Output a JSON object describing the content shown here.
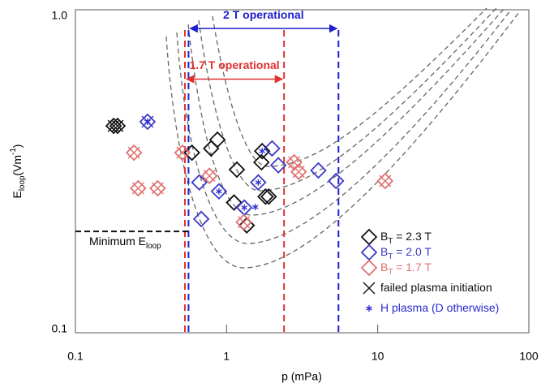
{
  "chart_data": {
    "type": "scatter",
    "x_label": "p (mPa)",
    "y_label": [
      {
        "t": "E"
      },
      {
        "t": "loop",
        "sub": true
      },
      {
        "t": "(Vm"
      },
      {
        "t": "-1",
        "sup": true
      },
      {
        "t": ")"
      }
    ],
    "xscale": "log",
    "yscale": "log",
    "xlim": [
      0.1,
      100
    ],
    "ylim": [
      0.1,
      1
    ],
    "xticks": [
      0.1,
      1,
      10,
      100
    ],
    "yticks": [
      0.1,
      {
        "value": 1,
        "label": "1.0"
      }
    ],
    "legend": "lower right",
    "series": [
      {
        "name": [
          {
            "t": "B"
          },
          {
            "t": "T",
            "sub": true
          },
          {
            "t": " = 2.3 T"
          }
        ],
        "marker": "diamond",
        "color": "#111111",
        "x": [
          0.179,
          0.19,
          0.59,
          0.79,
          0.87,
          1.17,
          1.12,
          1.36,
          1.72,
          1.81,
          1.9,
          1.7
        ],
        "values": [
          0.437,
          0.437,
          0.361,
          0.372,
          0.396,
          0.32,
          0.253,
          0.215,
          0.365,
          0.264,
          0.264,
          0.337
        ]
      },
      {
        "name": [
          {
            "t": "B"
          },
          {
            "t": "T",
            "sub": true
          },
          {
            "t": " = 2.0 T"
          }
        ],
        "marker": "diamond",
        "color": "#3a3ac8",
        "x": [
          0.3,
          0.68,
          0.66,
          0.89,
          1.31,
          1.62,
          2.0,
          2.2,
          4.05,
          5.3
        ],
        "values": [
          0.45,
          0.225,
          0.292,
          0.274,
          0.244,
          0.292,
          0.372,
          0.33,
          0.318,
          0.295
        ]
      },
      {
        "name": [
          {
            "t": "B"
          },
          {
            "t": "T",
            "sub": true
          },
          {
            "t": " = 1.7 T"
          }
        ],
        "marker": "diamond",
        "color": "#e07070",
        "x": [
          0.244,
          0.26,
          0.35,
          0.51,
          0.77,
          1.3,
          2.8,
          3.0,
          11.2
        ],
        "values": [
          0.361,
          0.28,
          0.28,
          0.361,
          0.306,
          0.22,
          0.337,
          0.315,
          0.295
        ]
      },
      {
        "name": [
          {
            "t": "failed plasma initiation"
          }
        ],
        "marker": "x",
        "color": "#111111",
        "colors": [
          "#111111",
          "#111111",
          "#3a3ac8",
          "#e07070",
          "#e07070",
          "#e07070",
          "#e07070",
          "#e07070",
          "#e07070",
          "#e07070",
          "#e07070",
          "#e07070"
        ],
        "x": [
          0.179,
          0.19,
          0.3,
          0.244,
          0.26,
          0.35,
          0.51,
          0.77,
          1.3,
          2.8,
          3.0,
          11.2
        ],
        "values": [
          0.437,
          0.437,
          0.45,
          0.361,
          0.28,
          0.28,
          0.361,
          0.306,
          0.22,
          0.337,
          0.315,
          0.295
        ]
      },
      {
        "name": [
          {
            "t": "H plasma (D otherwise)"
          }
        ],
        "marker": "star",
        "color": "#2a2ad0",
        "x": [
          0.3,
          0.89,
          1.31,
          1.62,
          1.72,
          1.55
        ],
        "values": [
          0.45,
          0.274,
          0.244,
          0.292,
          0.365,
          0.245
        ]
      }
    ],
    "vlines": [
      {
        "x": 0.53,
        "color": "#e03030"
      },
      {
        "x": 2.4,
        "color": "#e03030"
      },
      {
        "x": 0.56,
        "color": "#2020d0"
      },
      {
        "x": 5.5,
        "color": "#2020d0"
      }
    ],
    "ranges": [
      {
        "text": "2 T operational",
        "x": [
          0.56,
          5.5
        ],
        "y": 0.875,
        "color": "#2020d0"
      },
      {
        "text": "1.7 T operational",
        "x": [
          0.53,
          2.4
        ],
        "y": 0.61,
        "color": "#e03030"
      }
    ],
    "hline": {
      "y": 0.206,
      "x": [
        0.1,
        0.56
      ],
      "label": [
        {
          "t": "Minimum E"
        },
        {
          "t": "loop",
          "sub": true
        }
      ]
    }
  }
}
